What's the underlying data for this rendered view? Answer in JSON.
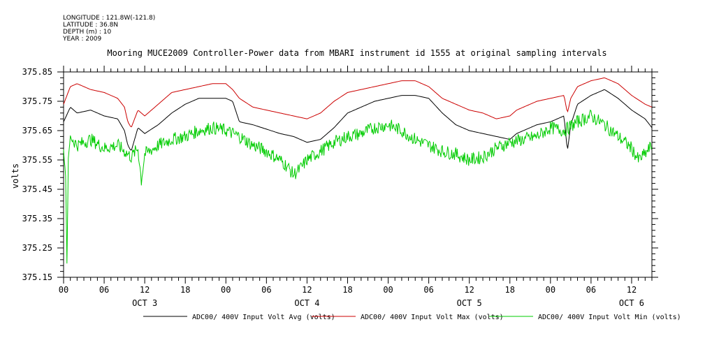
{
  "header": {
    "longitude": "LONGITUDE : 121.8W(-121.8)",
    "latitude": "LATITUDE : 36.8N",
    "depth": "DEPTH (m) : 10",
    "year": "YEAR : 2009"
  },
  "chart_data": {
    "type": "line",
    "title": "Mooring MUCE2009 Controller-Power data from MBARI instrument id 1555 at original sampling intervals",
    "ylabel": "volts",
    "xlabel": "",
    "ylim": [
      375.15,
      375.85
    ],
    "yticks": [
      "375.85",
      "375.75",
      "375.65",
      "375.55",
      "375.45",
      "375.35",
      "375.25",
      "375.15"
    ],
    "xlim_hours": [
      0,
      87
    ],
    "xtick_labels": [
      "00",
      "06",
      "12",
      "18",
      "00",
      "06",
      "12",
      "18",
      "00",
      "06",
      "12",
      "18",
      "00",
      "06",
      "12"
    ],
    "day_labels": [
      "OCT  3",
      "OCT  4",
      "OCT  5",
      "OCT  6"
    ],
    "grid": false,
    "legend_position": "bottom",
    "series": [
      {
        "name": "ADC00/ 400V Input Volt Avg (volts)",
        "color": "#000000",
        "x": [
          0,
          1,
          2,
          4,
          6,
          8,
          9,
          9.5,
          10,
          11,
          12,
          14,
          16,
          18,
          20,
          22,
          24,
          25,
          26,
          28,
          32,
          34,
          36,
          38,
          40,
          42,
          44,
          46,
          48,
          50,
          52,
          54,
          56,
          58,
          60,
          62,
          64,
          66,
          67,
          68,
          70,
          72,
          74,
          74.5,
          75,
          76,
          78,
          80,
          82,
          84,
          86,
          87
        ],
        "values": [
          375.68,
          375.73,
          375.71,
          375.72,
          375.7,
          375.69,
          375.65,
          375.6,
          375.58,
          375.66,
          375.64,
          375.67,
          375.71,
          375.74,
          375.76,
          375.76,
          375.76,
          375.75,
          375.68,
          375.67,
          375.64,
          375.63,
          375.61,
          375.62,
          375.66,
          375.71,
          375.73,
          375.75,
          375.76,
          375.77,
          375.77,
          375.76,
          375.71,
          375.67,
          375.65,
          375.64,
          375.63,
          375.62,
          375.64,
          375.65,
          375.67,
          375.68,
          375.7,
          375.58,
          375.67,
          375.74,
          375.77,
          375.79,
          375.76,
          375.72,
          375.69,
          375.66
        ]
      },
      {
        "name": "ADC00/ 400V Input Volt Max (volts)",
        "color": "#cc0000",
        "x": [
          0,
          1,
          2,
          4,
          6,
          8,
          9,
          9.5,
          10,
          11,
          12,
          14,
          16,
          18,
          20,
          22,
          24,
          25,
          26,
          28,
          32,
          34,
          36,
          38,
          40,
          42,
          44,
          46,
          48,
          50,
          52,
          54,
          56,
          58,
          60,
          62,
          64,
          66,
          67,
          68,
          70,
          72,
          74,
          74.5,
          75,
          76,
          78,
          80,
          82,
          84,
          86,
          87
        ],
        "values": [
          375.74,
          375.8,
          375.81,
          375.79,
          375.78,
          375.76,
          375.73,
          375.68,
          375.66,
          375.72,
          375.7,
          375.74,
          375.78,
          375.79,
          375.8,
          375.81,
          375.81,
          375.79,
          375.76,
          375.73,
          375.71,
          375.7,
          375.69,
          375.71,
          375.75,
          375.78,
          375.79,
          375.8,
          375.81,
          375.82,
          375.82,
          375.8,
          375.76,
          375.74,
          375.72,
          375.71,
          375.69,
          375.7,
          375.72,
          375.73,
          375.75,
          375.76,
          375.77,
          375.71,
          375.76,
          375.8,
          375.82,
          375.83,
          375.81,
          375.77,
          375.74,
          375.73
        ]
      },
      {
        "name": "ADC00/ 400V Input Volt Min (volts)",
        "color": "#00cc00",
        "x": [
          0,
          0.3,
          0.5,
          0.7,
          1,
          2,
          4,
          6,
          8,
          9,
          10,
          11,
          11.5,
          12,
          14,
          16,
          18,
          20,
          22,
          24,
          26,
          28,
          30,
          32,
          33,
          34,
          35,
          36,
          38,
          40,
          42,
          44,
          46,
          48,
          50,
          52,
          54,
          56,
          58,
          60,
          62,
          64,
          66,
          68,
          70,
          72,
          74,
          76,
          78,
          80,
          82,
          84,
          85,
          86,
          87
        ],
        "values": [
          375.58,
          375.5,
          375.2,
          375.55,
          375.63,
          375.6,
          375.62,
          375.59,
          375.6,
          375.58,
          375.56,
          375.59,
          375.48,
          375.57,
          375.6,
          375.62,
          375.63,
          375.65,
          375.66,
          375.65,
          375.63,
          375.6,
          375.58,
          375.55,
          375.53,
          375.5,
          375.52,
          375.55,
          375.58,
          375.61,
          375.63,
          375.64,
          375.66,
          375.67,
          375.65,
          375.62,
          375.6,
          375.58,
          375.57,
          375.55,
          375.56,
          375.59,
          375.61,
          375.62,
          375.63,
          375.66,
          375.65,
          375.68,
          375.7,
          375.67,
          375.63,
          375.59,
          375.55,
          375.57,
          375.6
        ]
      }
    ]
  }
}
